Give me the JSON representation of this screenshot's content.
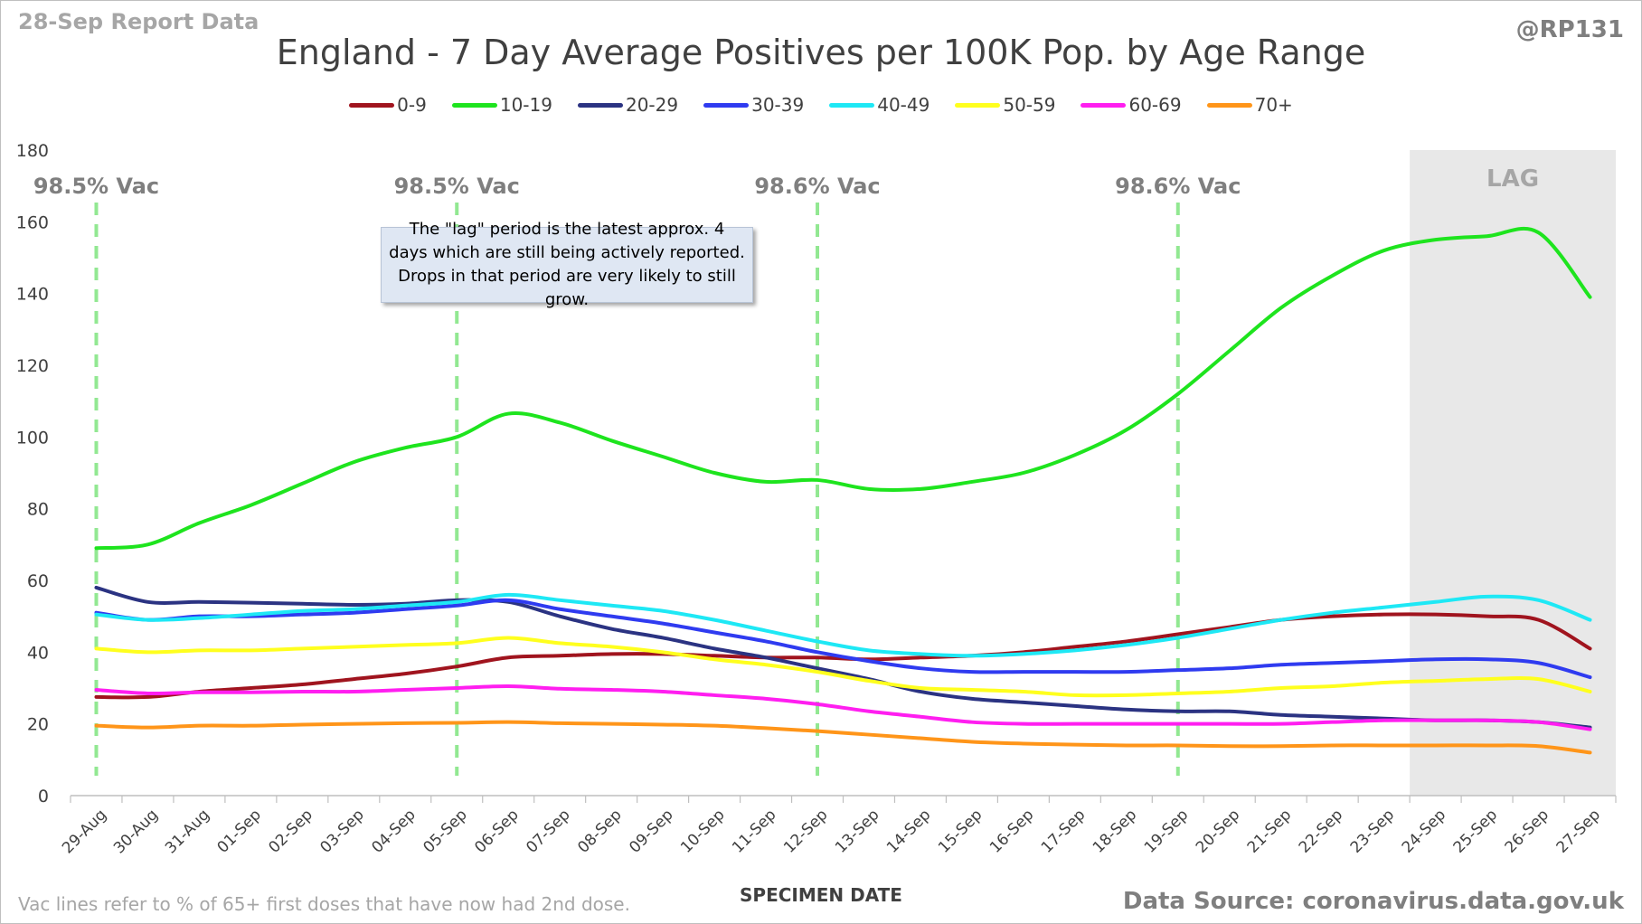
{
  "header": {
    "report_label": "28-Sep Report Data",
    "handle": "@RP131"
  },
  "footer": {
    "note": "Vac lines refer to % of 65+ first doses that have now had 2nd dose.",
    "source": "Data Source: coronavirus.data.gov.uk"
  },
  "annotation": {
    "text": "The \"lag\" period is the latest approx. 4 days which are still being actively reported. Drops in that period are very likely to still grow."
  },
  "chart_data": {
    "type": "line",
    "title": "England - 7 Day Average Positives per 100K Pop. by Age Range",
    "xlabel": "SPECIMEN DATE",
    "ylabel": "",
    "ylim": [
      0,
      180
    ],
    "yticks": [
      0,
      20,
      40,
      60,
      80,
      100,
      120,
      140,
      160,
      180
    ],
    "grid": false,
    "legend_position": "top",
    "categories": [
      "29-Aug",
      "30-Aug",
      "31-Aug",
      "01-Sep",
      "02-Sep",
      "03-Sep",
      "04-Sep",
      "05-Sep",
      "06-Sep",
      "07-Sep",
      "08-Sep",
      "09-Sep",
      "10-Sep",
      "11-Sep",
      "12-Sep",
      "13-Sep",
      "14-Sep",
      "15-Sep",
      "16-Sep",
      "17-Sep",
      "18-Sep",
      "19-Sep",
      "20-Sep",
      "21-Sep",
      "22-Sep",
      "23-Sep",
      "24-Sep",
      "25-Sep",
      "26-Sep",
      "27-Sep"
    ],
    "series": [
      {
        "name": "0-9",
        "color": "#a0141e",
        "values": [
          27.5,
          27.5,
          29,
          30,
          31,
          32.5,
          34,
          36,
          38.5,
          39,
          39.5,
          39.5,
          39,
          38.5,
          38.5,
          38,
          38.5,
          39,
          40,
          41.5,
          43,
          45,
          47,
          49,
          50,
          50.5,
          50.5,
          50,
          49,
          41
        ]
      },
      {
        "name": "10-19",
        "color": "#1ee41e",
        "values": [
          69,
          70,
          76,
          81,
          87,
          93,
          97,
          100,
          106.5,
          104,
          99,
          94.5,
          90,
          87.5,
          88,
          85.5,
          85.5,
          87.5,
          90,
          95,
          102,
          112,
          124,
          136,
          145,
          152,
          155,
          156,
          157,
          139
        ]
      },
      {
        "name": "20-29",
        "color": "#2b3382",
        "values": [
          58,
          54,
          54,
          53.8,
          53.5,
          53.2,
          53.5,
          54.5,
          54,
          50,
          46.5,
          44,
          41,
          38.5,
          35.5,
          32.5,
          29,
          27,
          26,
          25,
          24,
          23.5,
          23.5,
          22.5,
          22,
          21.5,
          21,
          21,
          20.5,
          19
        ]
      },
      {
        "name": "30-39",
        "color": "#2f3bf0",
        "values": [
          51,
          49,
          50,
          50,
          50.5,
          51,
          52,
          53,
          54.5,
          52,
          50,
          48,
          45.5,
          43,
          40,
          37.5,
          35.5,
          34.5,
          34.5,
          34.5,
          34.5,
          35,
          35.5,
          36.5,
          37,
          37.5,
          38,
          38,
          37,
          33
        ]
      },
      {
        "name": "40-49",
        "color": "#1ee8f5",
        "values": [
          50.5,
          49,
          49.5,
          50.5,
          51.5,
          52,
          53,
          54,
          56,
          54.5,
          53,
          51.5,
          49,
          46,
          43,
          40.5,
          39.5,
          39,
          39.5,
          40.5,
          42,
          44,
          46.5,
          49,
          51,
          52.5,
          54,
          55.5,
          54.5,
          49
        ]
      },
      {
        "name": "50-59",
        "color": "#ffff1e",
        "values": [
          41,
          40,
          40.5,
          40.5,
          41,
          41.5,
          42,
          42.5,
          44,
          42.5,
          41.5,
          40,
          38,
          36.5,
          34.5,
          32,
          30,
          29.5,
          29,
          28,
          28,
          28.5,
          29,
          30,
          30.5,
          31.5,
          32,
          32.5,
          32.5,
          29
        ]
      },
      {
        "name": "60-69",
        "color": "#ff1ef0",
        "values": [
          29.5,
          28.5,
          28.8,
          28.8,
          29,
          29,
          29.5,
          30,
          30.5,
          29.8,
          29.5,
          29,
          28,
          27,
          25.5,
          23.5,
          22,
          20.5,
          20,
          20,
          20,
          20,
          20,
          20,
          20.5,
          21,
          21,
          21,
          20.5,
          18.5
        ]
      },
      {
        "name": "70+",
        "color": "#ff9519",
        "values": [
          19.5,
          19,
          19.5,
          19.5,
          19.8,
          20,
          20.2,
          20.3,
          20.5,
          20.2,
          20,
          19.8,
          19.5,
          18.8,
          18,
          17,
          16,
          15,
          14.5,
          14.2,
          14,
          14,
          13.8,
          13.8,
          14,
          14,
          14,
          14,
          13.8,
          12
        ]
      }
    ],
    "vac_markers": [
      {
        "x": 0,
        "label": "98.5% Vac"
      },
      {
        "x": 7,
        "label": "98.5% Vac"
      },
      {
        "x": 14,
        "label": "98.6% Vac"
      },
      {
        "x": 21,
        "label": "98.6% Vac"
      }
    ],
    "lag_region": {
      "from_x": 25.5,
      "label": "LAG"
    }
  }
}
